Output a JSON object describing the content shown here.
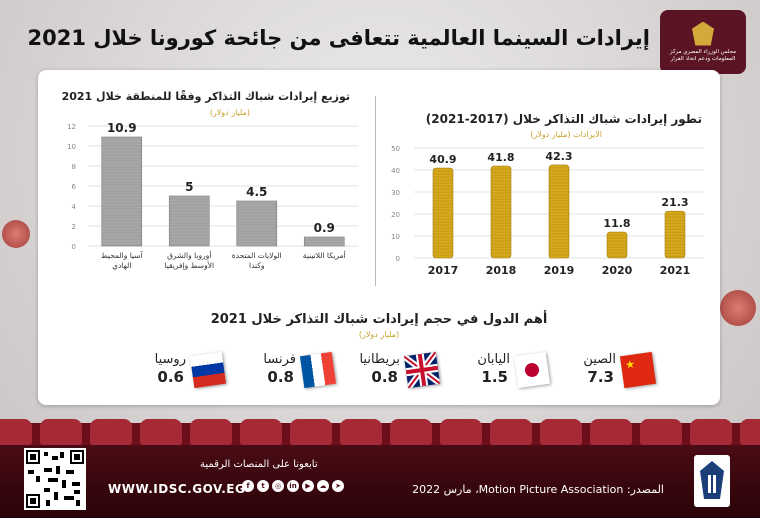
{
  "header": {
    "title": "إيرادات السينما العالمية تتعافى من جائحة كورونا خلال 2021",
    "logo_text": "مجلس الوزراء المصري مركز المعلومات ودعم اتخاذ القرار"
  },
  "colors": {
    "burgundy": "#5a1424",
    "gold": "#d7a91c",
    "gray_bar": "#a9a9a9",
    "subtitle_gold": "#c9a12a"
  },
  "chart_data": [
    {
      "type": "bar",
      "title": "توزيع إيرادات شباك التذاكر وفقًا للمنطقة خلال 2021",
      "subtitle": "(مليار دولار)",
      "categories": [
        "آسيا والمحيط الهادي",
        "أوروبا والشرق الأوسط وإفريقيا",
        "الولايات المتحدة وكندا",
        "أمريكا اللاتينية"
      ],
      "values": [
        10.9,
        5,
        4.5,
        0.9
      ],
      "value_labels": [
        "10.9",
        "5",
        "4.5",
        "0.9"
      ],
      "ylim": [
        0,
        12
      ],
      "yticks": [
        "0",
        "2",
        "4",
        "6",
        "8",
        "10",
        "12"
      ],
      "grid": true
    },
    {
      "type": "bar",
      "title": "تطور إيرادات شباك التذاكر خلال (2017-2021)",
      "subtitle": "الايرادات (مليار دولار)",
      "categories": [
        "2017",
        "2018",
        "2019",
        "2020",
        "2021"
      ],
      "values": [
        40.9,
        41.8,
        42.3,
        11.8,
        21.3
      ],
      "value_labels": [
        "40.9",
        "41.8",
        "42.3",
        "11.8",
        "21.3"
      ],
      "ylim": [
        0,
        50
      ],
      "yticks": [
        "0",
        "10",
        "20",
        "30",
        "40",
        "50"
      ],
      "grid": true
    }
  ],
  "countries": {
    "title": "أهم الدول في حجم إيرادات شباك التذاكر خلال 2021",
    "subtitle": "(مليار دولار)",
    "items": [
      {
        "name": "الصين",
        "value": "7.3",
        "flag": "china-flag"
      },
      {
        "name": "اليابان",
        "value": "1.5",
        "flag": "japan-flag"
      },
      {
        "name": "بريطانيا",
        "value": "0.8",
        "flag": "uk-flag"
      },
      {
        "name": "فرنسا",
        "value": "0.8",
        "flag": "france-flag"
      },
      {
        "name": "روسيا",
        "value": "0.6",
        "flag": "russia-flag"
      }
    ]
  },
  "footer": {
    "follow_text": "تابعونا على المنصات الرقمية",
    "website": "WWW.IDSC.GOV.EG",
    "source": "المصدر: Motion Picture Association، مارس 2022",
    "social_icons": [
      "facebook-icon",
      "twitter-icon",
      "instagram-icon",
      "linkedin-icon",
      "youtube-icon",
      "soundcloud-icon",
      "telegram-icon"
    ]
  }
}
